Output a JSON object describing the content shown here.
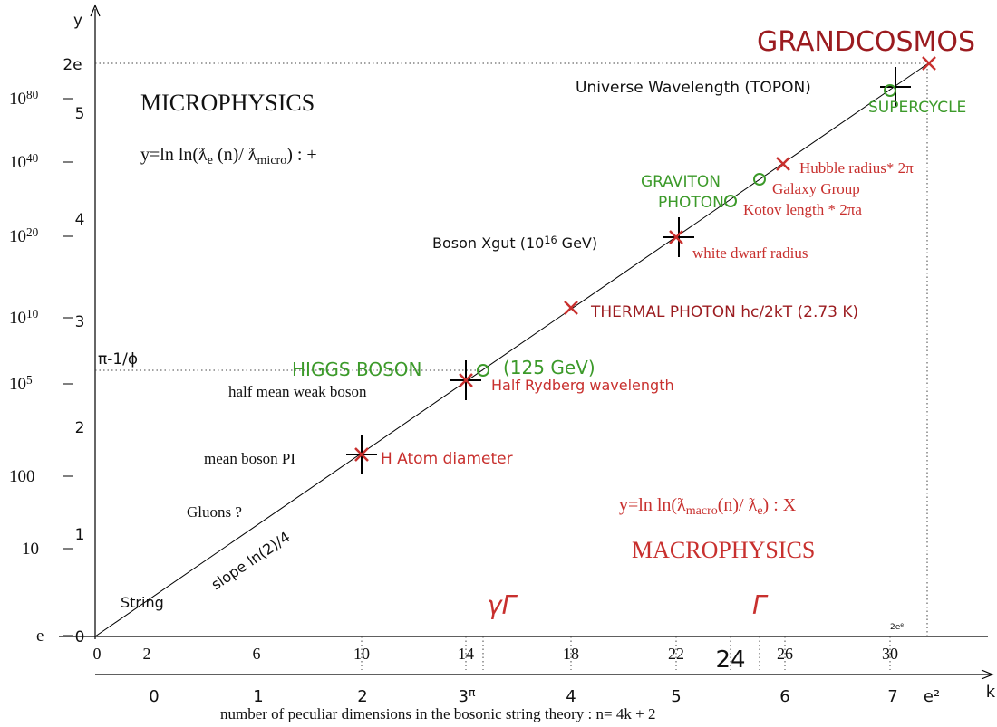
{
  "labels": [
    {
      "parts": [
        "MICROPHYSICS"
      ]
    },
    {
      "parts": [
        "y=ln ln(ƛ",
        {
          "sub": "e"
        },
        " (n)/ ƛ",
        {
          "sub": "micro"
        },
        ") : +"
      ]
    },
    {
      "parts": [
        "Universe Wavelength (TOPON)"
      ]
    },
    {
      "parts": [
        "SUPERCYCLE"
      ]
    },
    {
      "parts": [
        "GRANDCOSMOS"
      ]
    },
    {
      "parts": [
        "GRAVITON"
      ]
    },
    {
      "parts": [
        "PHOTON"
      ]
    },
    {
      "parts": [
        "Hubble radius* 2π"
      ]
    },
    {
      "parts": [
        "Galaxy  Group"
      ]
    },
    {
      "parts": [
        "Kotov length * 2πa"
      ]
    },
    {
      "parts": [
        "Boson Xgut (10",
        {
          "sup": "16"
        },
        " GeV)"
      ]
    },
    {
      "parts": [
        "white dwarf radius"
      ]
    },
    {
      "parts": [
        "THERMAL PHOTON hc/2kT (2.73 K)"
      ]
    },
    {
      "parts": [
        "HIGGS BOSON"
      ]
    },
    {
      "parts": [
        "(125 GeV)"
      ]
    },
    {
      "parts": [
        "half mean weak boson"
      ]
    },
    {
      "parts": [
        "Half Rydberg wavelength"
      ]
    },
    {
      "parts": [
        "mean boson PI"
      ]
    },
    {
      "parts": [
        "H Atom diameter"
      ]
    },
    {
      "parts": [
        "Gluons ?"
      ]
    },
    {
      "parts": [
        "slope ln(2)/4"
      ]
    },
    {
      "parts": [
        "String"
      ]
    },
    {
      "parts": [
        "y=ln ln(ƛ",
        {
          "sub": "macro"
        },
        "(n)/ ƛ",
        {
          "sub": "e"
        },
        ") : X"
      ]
    },
    {
      "parts": [
        "MACROPHYSICS"
      ]
    },
    {
      "parts": [
        "γΓ"
      ]
    },
    {
      "parts": [
        "Γ"
      ]
    },
    {
      "parts": [
        "number of peculiar dimensions in the bosonic string theory  : n= 4k + 2"
      ]
    },
    {
      "parts": [
        "2e",
        {
          "sup": "e"
        }
      ]
    }
  ],
  "left_labels": [
    {
      "parts": [
        "e"
      ]
    },
    {
      "parts": [
        "10"
      ]
    },
    {
      "parts": [
        "100"
      ]
    },
    {
      "parts": [
        "10",
        {
          "sup": "5"
        }
      ]
    },
    {
      "parts": [
        "10",
        {
          "sup": "10"
        }
      ]
    },
    {
      "parts": [
        "10",
        {
          "sup": "20"
        }
      ]
    },
    {
      "parts": [
        "10",
        {
          "sup": "40"
        }
      ]
    },
    {
      "parts": [
        "10",
        {
          "sup": "80"
        }
      ]
    },
    {
      "parts": [
        "π-1/ϕ"
      ]
    }
  ],
  "y_labels": [
    "0",
    "1",
    "2",
    "3",
    "4",
    "5",
    "2e",
    "y"
  ],
  "n_labels": [
    "0",
    "2",
    "6",
    "10",
    "14",
    "18",
    "22",
    "24",
    "26",
    "30"
  ],
  "k_labels": [
    {
      "parts": [
        "0"
      ]
    },
    {
      "parts": [
        "1"
      ]
    },
    {
      "parts": [
        "2"
      ]
    },
    {
      "parts": [
        "3",
        {
          "sup": "π"
        }
      ]
    },
    {
      "parts": [
        "4"
      ]
    },
    {
      "parts": [
        "5"
      ]
    },
    {
      "parts": [
        "6"
      ]
    },
    {
      "parts": [
        "7"
      ]
    },
    {
      "parts": [
        "e²"
      ]
    },
    {
      "parts": [
        "k"
      ]
    }
  ]
}
